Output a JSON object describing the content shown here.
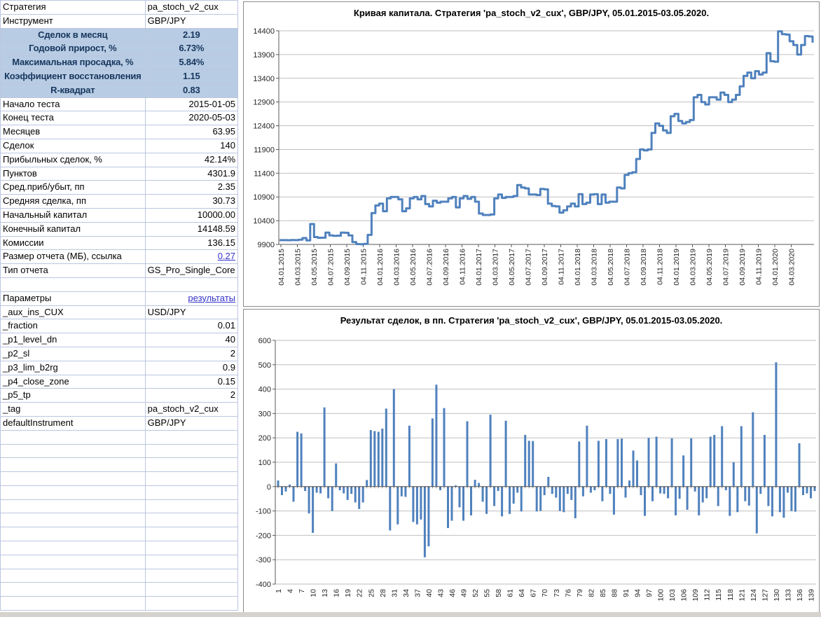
{
  "colors": {
    "accent": "#4f81bd",
    "highlight_row": "#b8cce4",
    "link": "#3333cc",
    "gridline": "#bfbfbf",
    "axis": "#595959",
    "table_border": "#bcc6df",
    "chart_border": "#8c8c8c",
    "bottom_strip": "#d6d3ce"
  },
  "table": {
    "empty_rows": 13,
    "rows": [
      {
        "l": "Стратегия",
        "v": "pa_stoch_v2_cux",
        "a": "l",
        "s": ""
      },
      {
        "l": "Инструмент",
        "v": "GBP/JPY",
        "a": "l",
        "s": ""
      },
      {
        "l": "Сделок в месяц",
        "v": "2.19",
        "a": "c",
        "s": "hl"
      },
      {
        "l": "Годовой прирост, %",
        "v": "6.73%",
        "a": "c",
        "s": "hl"
      },
      {
        "l": "Максимальная просадка, %",
        "v": "5.84%",
        "a": "c",
        "s": "hl"
      },
      {
        "l": "Коэффициент восстановления",
        "v": "1.15",
        "a": "c",
        "s": "hl"
      },
      {
        "l": "R-квадрат",
        "v": "0.83",
        "a": "c",
        "s": "hl"
      },
      {
        "l": "Начало теста",
        "v": "2015-01-05",
        "a": "r",
        "s": ""
      },
      {
        "l": "Конец теста",
        "v": "2020-05-03",
        "a": "r",
        "s": ""
      },
      {
        "l": "Месяцев",
        "v": "63.95",
        "a": "r",
        "s": ""
      },
      {
        "l": "Сделок",
        "v": "140",
        "a": "r",
        "s": ""
      },
      {
        "l": "Прибыльных сделок, %",
        "v": "42.14%",
        "a": "r",
        "s": ""
      },
      {
        "l": "Пунктов",
        "v": "4301.9",
        "a": "r",
        "s": ""
      },
      {
        "l": "Сред.приб/убыт, пп",
        "v": "2.35",
        "a": "r",
        "s": ""
      },
      {
        "l": "Средняя сделка, пп",
        "v": "30.73",
        "a": "r",
        "s": ""
      },
      {
        "l": "Начальный капитал",
        "v": "10000.00",
        "a": "r",
        "s": ""
      },
      {
        "l": "Конечный капитал",
        "v": "14148.59",
        "a": "r",
        "s": ""
      },
      {
        "l": "Комиссии",
        "v": "136.15",
        "a": "r",
        "s": ""
      },
      {
        "l": "Размер отчета (МБ), ссылка",
        "v": "0.27",
        "a": "r",
        "s": "link"
      },
      {
        "l": "Тип отчета",
        "v": "GS_Pro_Single_Core",
        "a": "l",
        "s": ""
      },
      {
        "l": "",
        "v": "",
        "a": "l",
        "s": ""
      },
      {
        "l": "Параметры",
        "v": "результаты",
        "a": "r",
        "s": "link"
      },
      {
        "l": "_aux_ins_CUX",
        "v": "USD/JPY",
        "a": "l",
        "s": ""
      },
      {
        "l": "_fraction",
        "v": "0.01",
        "a": "r",
        "s": ""
      },
      {
        "l": "_p1_level_dn",
        "v": "40",
        "a": "r",
        "s": ""
      },
      {
        "l": "_p2_sl",
        "v": "2",
        "a": "r",
        "s": ""
      },
      {
        "l": "_p3_lim_b2rg",
        "v": "0.9",
        "a": "r",
        "s": ""
      },
      {
        "l": "_p4_close_zone",
        "v": "0.15",
        "a": "r",
        "s": ""
      },
      {
        "l": "_p5_tp",
        "v": "2",
        "a": "r",
        "s": ""
      },
      {
        "l": "_tag",
        "v": "pa_stoch_v2_cux",
        "a": "l",
        "s": ""
      },
      {
        "l": "defaultInstrument",
        "v": "GBP/JPY",
        "a": "l",
        "s": ""
      }
    ]
  },
  "chart_data": [
    {
      "type": "line",
      "title": "Кривая капитала. Стратегия 'pa_stoch_v2_cux', GBP/JPY, 05.01.2015-03.05.2020.",
      "ylim": [
        9900,
        14400
      ],
      "y_ticks": [
        14400,
        13900,
        13400,
        12900,
        12400,
        11900,
        11400,
        10900,
        10400,
        9900
      ],
      "x_labels": [
        "04.01.2015",
        "04.03.2015",
        "04.05.2015",
        "04.07.2015",
        "04.09.2015",
        "04.11.2015",
        "04.01.2016",
        "04.03.2016",
        "04.05.2016",
        "04.07.2016",
        "04.09.2016",
        "04.11.2016",
        "04.01.2017",
        "04.03.2017",
        "04.05.2017",
        "04.07.2017",
        "04.09.2017",
        "04.11.2017",
        "04.01.2018",
        "04.03.2018",
        "04.05.2018",
        "04.07.2018",
        "04.09.2018",
        "04.11.2018",
        "04.01.2019",
        "04.03.2019",
        "04.05.2019",
        "04.07.2019",
        "04.09.2019",
        "04.11.2019",
        "04.01.2020",
        "04.03.2020"
      ],
      "grid": true,
      "legend": "none",
      "series": [
        {
          "name": "equity",
          "values": [
            9990,
            9990,
            9988,
            9992,
            9990,
            10000,
            10035,
            9985,
            10330,
            10055,
            10040,
            10042,
            10150,
            10090,
            10080,
            10085,
            10150,
            10145,
            10090,
            9950,
            9908,
            9905,
            9912,
            10100,
            10560,
            10720,
            10760,
            10600,
            10870,
            10900,
            10900,
            10850,
            10600,
            10660,
            10870,
            10900,
            10850,
            10920,
            10750,
            10700,
            10820,
            10780,
            10800,
            10800,
            10870,
            10900,
            10680,
            10870,
            10920,
            10860,
            10900,
            10800,
            10550,
            10520,
            10520,
            10530,
            10870,
            10950,
            10880,
            10900,
            10900,
            10920,
            11150,
            11100,
            11080,
            10950,
            10950,
            10940,
            11070,
            11060,
            10760,
            10710,
            10700,
            10570,
            10620,
            10700,
            10760,
            10700,
            10960,
            10750,
            10780,
            10950,
            10960,
            10750,
            10950,
            10780,
            10800,
            10800,
            11100,
            11080,
            11365,
            11400,
            11420,
            11700,
            11900,
            11880,
            11900,
            12250,
            12450,
            12400,
            12300,
            12250,
            12600,
            12650,
            12500,
            12450,
            12480,
            12520,
            13000,
            13050,
            12900,
            12850,
            13000,
            13000,
            12950,
            13100,
            13050,
            12900,
            12950,
            13050,
            13230,
            13450,
            13520,
            13400,
            13550,
            13480,
            13520,
            13930,
            13760,
            13750,
            14390,
            14330,
            14320,
            14180,
            14100,
            13900,
            14100,
            14290,
            14280,
            14150
          ]
        }
      ]
    },
    {
      "type": "bar",
      "title": "Результат сделок, в пп. Стратегия 'pa_stoch_v2_cux', GBP/JPY, 05.01.2015-03.05.2020.",
      "ylim": [
        -400,
        600
      ],
      "y_ticks": [
        600,
        500,
        400,
        300,
        200,
        100,
        0,
        -100,
        -200,
        -300,
        -400
      ],
      "x_labels": [
        "1",
        "4",
        "7",
        "10",
        "13",
        "16",
        "19",
        "22",
        "25",
        "28",
        "31",
        "34",
        "37",
        "40",
        "43",
        "46",
        "49",
        "52",
        "55",
        "58",
        "61",
        "64",
        "67",
        "70",
        "73",
        "76",
        "79",
        "82",
        "85",
        "88",
        "91",
        "94",
        "97",
        "100",
        "103",
        "106",
        "109",
        "112",
        "115",
        "118",
        "121",
        "124",
        "127",
        "130",
        "133",
        "136",
        "139"
      ],
      "grid": true,
      "legend": "none",
      "values": [
        25,
        -35,
        -20,
        8,
        -62,
        225,
        218,
        -18,
        -110,
        -190,
        -25,
        -28,
        325,
        -48,
        -100,
        95,
        -15,
        -28,
        -55,
        -30,
        -65,
        -92,
        -65,
        27,
        232,
        228,
        225,
        238,
        320,
        -180,
        400,
        -155,
        -40,
        -42,
        250,
        -145,
        -155,
        -135,
        -290,
        -245,
        280,
        418,
        -15,
        322,
        -170,
        -140,
        5,
        -85,
        -140,
        268,
        -118,
        28,
        15,
        -62,
        -112,
        295,
        -80,
        -18,
        -122,
        270,
        -112,
        -70,
        -25,
        -102,
        212,
        188,
        187,
        -102,
        -100,
        -35,
        40,
        -30,
        -45,
        -100,
        -105,
        -30,
        -55,
        -130,
        185,
        -40,
        250,
        -25,
        -15,
        188,
        -60,
        195,
        -30,
        -115,
        195,
        197,
        -45,
        25,
        148,
        107,
        -35,
        -120,
        200,
        -60,
        205,
        -28,
        -30,
        -48,
        198,
        -118,
        -50,
        128,
        -95,
        198,
        -20,
        -118,
        -65,
        -48,
        205,
        212,
        -80,
        248,
        -15,
        -120,
        100,
        -105,
        248,
        -60,
        -78,
        305,
        -192,
        -30,
        212,
        -80,
        -122,
        510,
        -105,
        -128,
        -25,
        -100,
        -103,
        178,
        -35,
        -28,
        -48,
        -18
      ]
    }
  ]
}
